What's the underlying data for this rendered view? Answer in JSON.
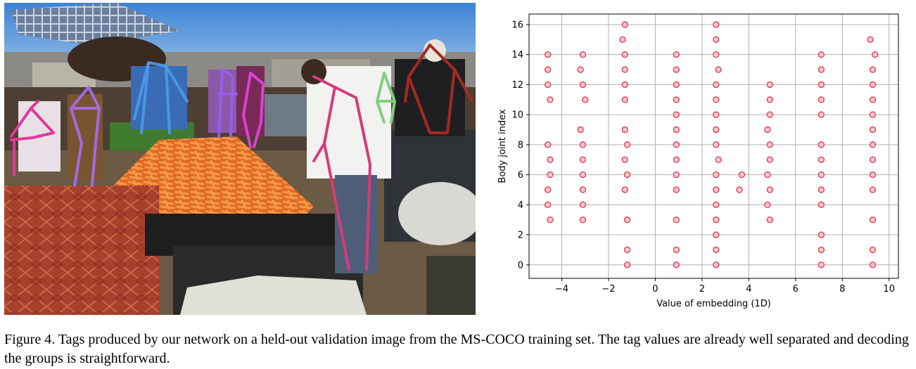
{
  "caption": "Figure 4. Tags produced by our network on a held-out validation image from the MS-COCO training set. The tag values are already well separated and decoding the groups is straightforward.",
  "photo": {
    "skeleton_colors": [
      "#e0389a",
      "#a46ae0",
      "#4a95e6",
      "#9a5ce8",
      "#d844d0",
      "#d63a7a",
      "#7fcf7f",
      "#a52a20"
    ]
  },
  "chart_data": {
    "type": "scatter",
    "xlabel": "Value of embedding (1D)",
    "ylabel": "Body joint index",
    "xlim": [
      -5.4,
      10.4
    ],
    "ylim": [
      -0.9,
      16.7
    ],
    "xticks": [
      -4,
      -2,
      0,
      2,
      4,
      6,
      8,
      10
    ],
    "yticks": [
      0,
      2,
      4,
      6,
      8,
      10,
      12,
      14,
      16
    ],
    "grid": true,
    "marker_color": "#e0405a",
    "points": [
      [
        -4.6,
        14
      ],
      [
        -4.6,
        13
      ],
      [
        -4.6,
        12
      ],
      [
        -4.5,
        11
      ],
      [
        -4.6,
        8
      ],
      [
        -4.5,
        7
      ],
      [
        -4.5,
        6
      ],
      [
        -4.6,
        5
      ],
      [
        -4.6,
        4
      ],
      [
        -4.5,
        3
      ],
      [
        -3.1,
        14
      ],
      [
        -3.2,
        13
      ],
      [
        -3.1,
        12
      ],
      [
        -3.0,
        11
      ],
      [
        -3.2,
        9
      ],
      [
        -3.1,
        8
      ],
      [
        -3.1,
        7
      ],
      [
        -3.1,
        6
      ],
      [
        -3.1,
        5
      ],
      [
        -3.1,
        4
      ],
      [
        -3.1,
        3
      ],
      [
        -1.3,
        16
      ],
      [
        -1.4,
        15
      ],
      [
        -1.3,
        14
      ],
      [
        -1.3,
        13
      ],
      [
        -1.3,
        12
      ],
      [
        -1.3,
        11
      ],
      [
        -1.3,
        9
      ],
      [
        -1.2,
        8
      ],
      [
        -1.3,
        7
      ],
      [
        -1.2,
        6
      ],
      [
        -1.3,
        5
      ],
      [
        -1.2,
        3
      ],
      [
        -1.2,
        1
      ],
      [
        -1.2,
        0
      ],
      [
        0.9,
        14
      ],
      [
        0.9,
        13
      ],
      [
        0.9,
        12
      ],
      [
        0.9,
        11
      ],
      [
        0.9,
        10
      ],
      [
        0.9,
        9
      ],
      [
        0.9,
        8
      ],
      [
        0.9,
        7
      ],
      [
        0.9,
        6
      ],
      [
        0.9,
        5
      ],
      [
        0.9,
        3
      ],
      [
        0.9,
        1
      ],
      [
        0.9,
        0
      ],
      [
        2.6,
        16
      ],
      [
        2.6,
        15
      ],
      [
        2.6,
        14
      ],
      [
        2.7,
        13
      ],
      [
        2.6,
        12
      ],
      [
        2.6,
        11
      ],
      [
        2.6,
        10
      ],
      [
        2.6,
        9
      ],
      [
        2.6,
        8
      ],
      [
        2.7,
        7
      ],
      [
        2.6,
        6
      ],
      [
        2.6,
        5
      ],
      [
        2.6,
        4
      ],
      [
        2.6,
        3
      ],
      [
        2.6,
        2
      ],
      [
        2.6,
        1
      ],
      [
        2.6,
        0
      ],
      [
        3.7,
        6
      ],
      [
        3.6,
        5
      ],
      [
        4.9,
        12
      ],
      [
        4.9,
        11
      ],
      [
        4.9,
        10
      ],
      [
        4.8,
        9
      ],
      [
        4.9,
        8
      ],
      [
        4.9,
        7
      ],
      [
        4.8,
        6
      ],
      [
        4.9,
        5
      ],
      [
        4.8,
        4
      ],
      [
        4.9,
        3
      ],
      [
        7.1,
        14
      ],
      [
        7.1,
        13
      ],
      [
        7.1,
        12
      ],
      [
        7.1,
        11
      ],
      [
        7.1,
        10
      ],
      [
        7.1,
        8
      ],
      [
        7.1,
        7
      ],
      [
        7.1,
        6
      ],
      [
        7.1,
        5
      ],
      [
        7.1,
        4
      ],
      [
        7.1,
        2
      ],
      [
        7.1,
        1
      ],
      [
        7.1,
        0
      ],
      [
        9.2,
        15
      ],
      [
        9.4,
        14
      ],
      [
        9.3,
        13
      ],
      [
        9.3,
        12
      ],
      [
        9.3,
        11
      ],
      [
        9.3,
        10
      ],
      [
        9.3,
        9
      ],
      [
        9.3,
        8
      ],
      [
        9.3,
        7
      ],
      [
        9.3,
        6
      ],
      [
        9.3,
        5
      ],
      [
        9.3,
        3
      ],
      [
        9.3,
        1
      ],
      [
        9.3,
        0
      ]
    ]
  }
}
